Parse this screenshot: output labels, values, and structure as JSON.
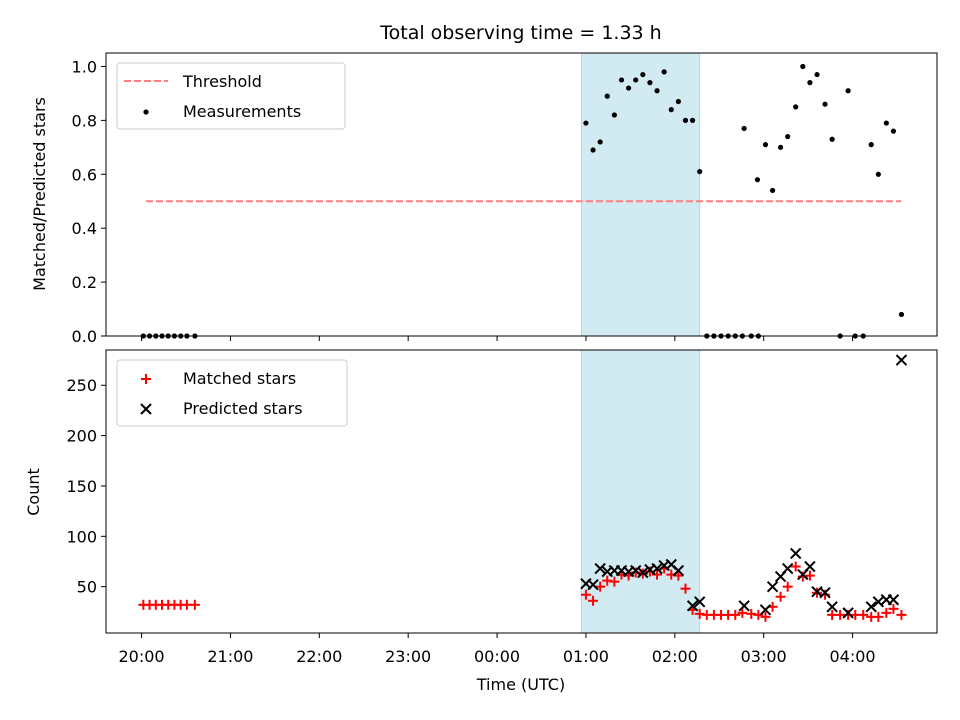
{
  "chart_data": {
    "type": "scatter",
    "title": "Total observing time = 1.33 h",
    "xlabel": "Time (UTC)",
    "x_tick_labels": [
      "20:00",
      "21:00",
      "22:00",
      "23:00",
      "00:00",
      "01:00",
      "02:00",
      "03:00",
      "04:00"
    ],
    "x_range_hours": [
      -0.4,
      8.95
    ],
    "shaded_span_hours": [
      4.95,
      6.28
    ],
    "shade_color": "#add8e6",
    "top_panel": {
      "ylabel": "Matched/Predicted stars",
      "ylim": [
        0,
        1.05
      ],
      "yticks": [
        0.0,
        0.2,
        0.4,
        0.6,
        0.8,
        1.0
      ],
      "y_tick_labels": [
        "0.0",
        "0.2",
        "0.4",
        "0.6",
        "0.8",
        "1.0"
      ],
      "legend_position": "top-left",
      "threshold": {
        "name": "Threshold",
        "value": 0.5,
        "x_from": 0.05,
        "x_to": 8.55,
        "color": "#ff7f7f"
      },
      "measurements": {
        "name": "Measurements",
        "color": "#000000",
        "points": [
          [
            0.02,
            0
          ],
          [
            0.09,
            0
          ],
          [
            0.16,
            0
          ],
          [
            0.23,
            0
          ],
          [
            0.3,
            0
          ],
          [
            0.37,
            0
          ],
          [
            0.44,
            0
          ],
          [
            0.51,
            0
          ],
          [
            0.6,
            0
          ],
          [
            5.0,
            0.79
          ],
          [
            5.08,
            0.69
          ],
          [
            5.16,
            0.72
          ],
          [
            5.24,
            0.89
          ],
          [
            5.32,
            0.82
          ],
          [
            5.4,
            0.95
          ],
          [
            5.48,
            0.92
          ],
          [
            5.56,
            0.95
          ],
          [
            5.64,
            0.97
          ],
          [
            5.72,
            0.94
          ],
          [
            5.8,
            0.91
          ],
          [
            5.88,
            0.98
          ],
          [
            5.96,
            0.84
          ],
          [
            6.04,
            0.87
          ],
          [
            6.12,
            0.8
          ],
          [
            6.2,
            0.8
          ],
          [
            6.28,
            0.61
          ],
          [
            6.36,
            0
          ],
          [
            6.44,
            0
          ],
          [
            6.52,
            0
          ],
          [
            6.6,
            0
          ],
          [
            6.68,
            0
          ],
          [
            6.76,
            0
          ],
          [
            6.86,
            0
          ],
          [
            6.94,
            0
          ],
          [
            6.78,
            0.77
          ],
          [
            6.93,
            0.58
          ],
          [
            7.02,
            0.71
          ],
          [
            7.1,
            0.54
          ],
          [
            7.19,
            0.7
          ],
          [
            7.27,
            0.74
          ],
          [
            7.36,
            0.85
          ],
          [
            7.44,
            1.0
          ],
          [
            7.52,
            0.94
          ],
          [
            7.6,
            0.97
          ],
          [
            7.69,
            0.86
          ],
          [
            7.77,
            0.73
          ],
          [
            7.86,
            0
          ],
          [
            7.95,
            0.91
          ],
          [
            8.03,
            0
          ],
          [
            8.12,
            0
          ],
          [
            8.21,
            0.71
          ],
          [
            8.29,
            0.6
          ],
          [
            8.38,
            0.79
          ],
          [
            8.46,
            0.76
          ],
          [
            8.55,
            0.08
          ]
        ]
      }
    },
    "bottom_panel": {
      "ylabel": "Count",
      "ylim": [
        4,
        285
      ],
      "yticks": [
        50,
        100,
        150,
        200,
        250
      ],
      "y_tick_labels": [
        "50",
        "100",
        "150",
        "200",
        "250"
      ],
      "legend_position": "top-left",
      "series": [
        {
          "name": "Matched stars",
          "color": "#ff0000",
          "points": [
            [
              0.02,
              32
            ],
            [
              0.09,
              32
            ],
            [
              0.16,
              32
            ],
            [
              0.23,
              32
            ],
            [
              0.3,
              32
            ],
            [
              0.37,
              32
            ],
            [
              0.44,
              32
            ],
            [
              0.51,
              32
            ],
            [
              0.6,
              32
            ],
            [
              5.0,
              42
            ],
            [
              5.08,
              36
            ],
            [
              5.16,
              50
            ],
            [
              5.24,
              56
            ],
            [
              5.32,
              55
            ],
            [
              5.4,
              62
            ],
            [
              5.48,
              61
            ],
            [
              5.56,
              64
            ],
            [
              5.64,
              63
            ],
            [
              5.72,
              65
            ],
            [
              5.8,
              62
            ],
            [
              5.88,
              68
            ],
            [
              5.96,
              62
            ],
            [
              6.04,
              61
            ],
            [
              6.12,
              48
            ],
            [
              6.2,
              27
            ],
            [
              6.28,
              23
            ],
            [
              6.36,
              22
            ],
            [
              6.44,
              22
            ],
            [
              6.52,
              22
            ],
            [
              6.6,
              22
            ],
            [
              6.68,
              22
            ],
            [
              6.76,
              24
            ],
            [
              6.86,
              23
            ],
            [
              6.94,
              22
            ],
            [
              7.02,
              20
            ],
            [
              7.1,
              30
            ],
            [
              7.19,
              40
            ],
            [
              7.27,
              50
            ],
            [
              7.36,
              70
            ],
            [
              7.44,
              60
            ],
            [
              7.52,
              61
            ],
            [
              7.6,
              44
            ],
            [
              7.69,
              42
            ],
            [
              7.77,
              22
            ],
            [
              7.86,
              22
            ],
            [
              7.95,
              22
            ],
            [
              8.03,
              22
            ],
            [
              8.12,
              22
            ],
            [
              8.21,
              20
            ],
            [
              8.29,
              20
            ],
            [
              8.38,
              24
            ],
            [
              8.46,
              28
            ],
            [
              8.55,
              22
            ]
          ]
        },
        {
          "name": "Predicted stars",
          "color": "#000000",
          "points": [
            [
              5.0,
              53
            ],
            [
              5.08,
              52
            ],
            [
              5.16,
              68
            ],
            [
              5.24,
              65
            ],
            [
              5.32,
              66
            ],
            [
              5.4,
              66
            ],
            [
              5.48,
              65
            ],
            [
              5.56,
              66
            ],
            [
              5.64,
              64
            ],
            [
              5.72,
              67
            ],
            [
              5.8,
              68
            ],
            [
              5.88,
              71
            ],
            [
              5.96,
              72
            ],
            [
              6.04,
              66
            ],
            [
              6.2,
              31
            ],
            [
              6.28,
              35
            ],
            [
              6.78,
              31
            ],
            [
              7.02,
              27
            ],
            [
              7.1,
              50
            ],
            [
              7.19,
              60
            ],
            [
              7.27,
              68
            ],
            [
              7.36,
              83
            ],
            [
              7.44,
              62
            ],
            [
              7.52,
              70
            ],
            [
              7.6,
              45
            ],
            [
              7.69,
              44
            ],
            [
              7.77,
              30
            ],
            [
              7.95,
              24
            ],
            [
              8.21,
              30
            ],
            [
              8.29,
              35
            ],
            [
              8.38,
              37
            ],
            [
              8.46,
              37
            ],
            [
              8.55,
              275
            ]
          ]
        }
      ]
    }
  }
}
